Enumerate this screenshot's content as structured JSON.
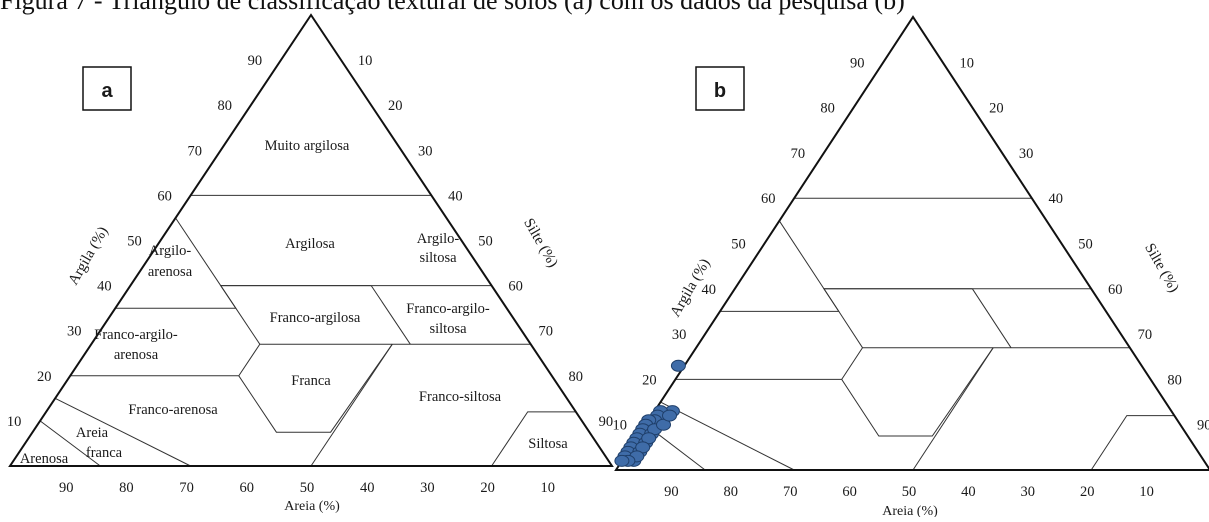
{
  "caption": "Figura 7 - Triângulo de classificação textural de solos (a) com os dados da pesquisa (b)",
  "panel_a": {
    "label": "a",
    "axis_left_title": "Argila (%)",
    "axis_right_title": "Silte (%)",
    "axis_bottom_title": "Areia (%)",
    "left_ticks": [
      "90",
      "80",
      "70",
      "60",
      "50",
      "40",
      "30",
      "20",
      "10"
    ],
    "right_ticks": [
      "10",
      "20",
      "30",
      "40",
      "50",
      "60",
      "70",
      "80",
      "90"
    ],
    "bottom_ticks": [
      "90",
      "80",
      "70",
      "60",
      "50",
      "40",
      "30",
      "20",
      "10"
    ],
    "classes": {
      "muito_argilosa": "Muito argilosa",
      "argilosa": "Argilosa",
      "argilo_arenosa": [
        "Argilo-",
        "arenosa"
      ],
      "argilo_siltosa": [
        "Argilo-",
        "siltosa"
      ],
      "franco_argilosa": "Franco-argilosa",
      "franco_argilo_siltosa": [
        "Franco-argilo-",
        "siltosa"
      ],
      "franco_argilo_arenosa": [
        "Franco-argilo-",
        "arenosa"
      ],
      "franca": "Franca",
      "franco_arenosa": "Franco-arenosa",
      "franco_siltosa": "Franco-siltosa",
      "areia_franca": [
        "Areia",
        "franca"
      ],
      "arenosa": "Arenosa",
      "siltosa": "Siltosa"
    }
  },
  "panel_b": {
    "label": "b",
    "axis_left_title": "Argila (%)",
    "axis_right_title": "Silte (%)",
    "axis_bottom_title": "Areia (%)",
    "left_ticks": [
      "90",
      "80",
      "70",
      "60",
      "50",
      "40",
      "30",
      "20",
      "10"
    ],
    "right_ticks": [
      "10",
      "20",
      "30",
      "40",
      "50",
      "60",
      "70",
      "80",
      "90"
    ],
    "bottom_ticks": [
      "90",
      "80",
      "70",
      "60",
      "50",
      "40",
      "30",
      "20",
      "10"
    ],
    "point_color": "#3f6ca8",
    "point_stroke": "#1f3f6a"
  },
  "chart_data": {
    "type": "scatter",
    "xlabel": "Areia (%)",
    "ylabel": "Argila (%)",
    "points": [
      {
        "sand": 78,
        "clay": 23
      },
      {
        "sand": 84,
        "clay": 13
      },
      {
        "sand": 86,
        "clay": 13
      },
      {
        "sand": 87,
        "clay": 12
      },
      {
        "sand": 88,
        "clay": 11
      },
      {
        "sand": 89,
        "clay": 11
      },
      {
        "sand": 90,
        "clay": 10
      },
      {
        "sand": 91,
        "clay": 9
      },
      {
        "sand": 92,
        "clay": 8
      },
      {
        "sand": 93,
        "clay": 7
      },
      {
        "sand": 94,
        "clay": 6
      },
      {
        "sand": 95,
        "clay": 5
      },
      {
        "sand": 96,
        "clay": 4
      },
      {
        "sand": 97,
        "clay": 3
      },
      {
        "sand": 90,
        "clay": 8
      },
      {
        "sand": 92,
        "clay": 6
      },
      {
        "sand": 94,
        "clay": 4
      },
      {
        "sand": 96,
        "clay": 2
      },
      {
        "sand": 89,
        "clay": 9
      },
      {
        "sand": 91,
        "clay": 7
      },
      {
        "sand": 93,
        "clay": 5
      },
      {
        "sand": 95,
        "clay": 3
      },
      {
        "sand": 87,
        "clay": 10
      },
      {
        "sand": 85,
        "clay": 12
      },
      {
        "sand": 97,
        "clay": 2
      },
      {
        "sand": 98,
        "clay": 2
      }
    ]
  }
}
